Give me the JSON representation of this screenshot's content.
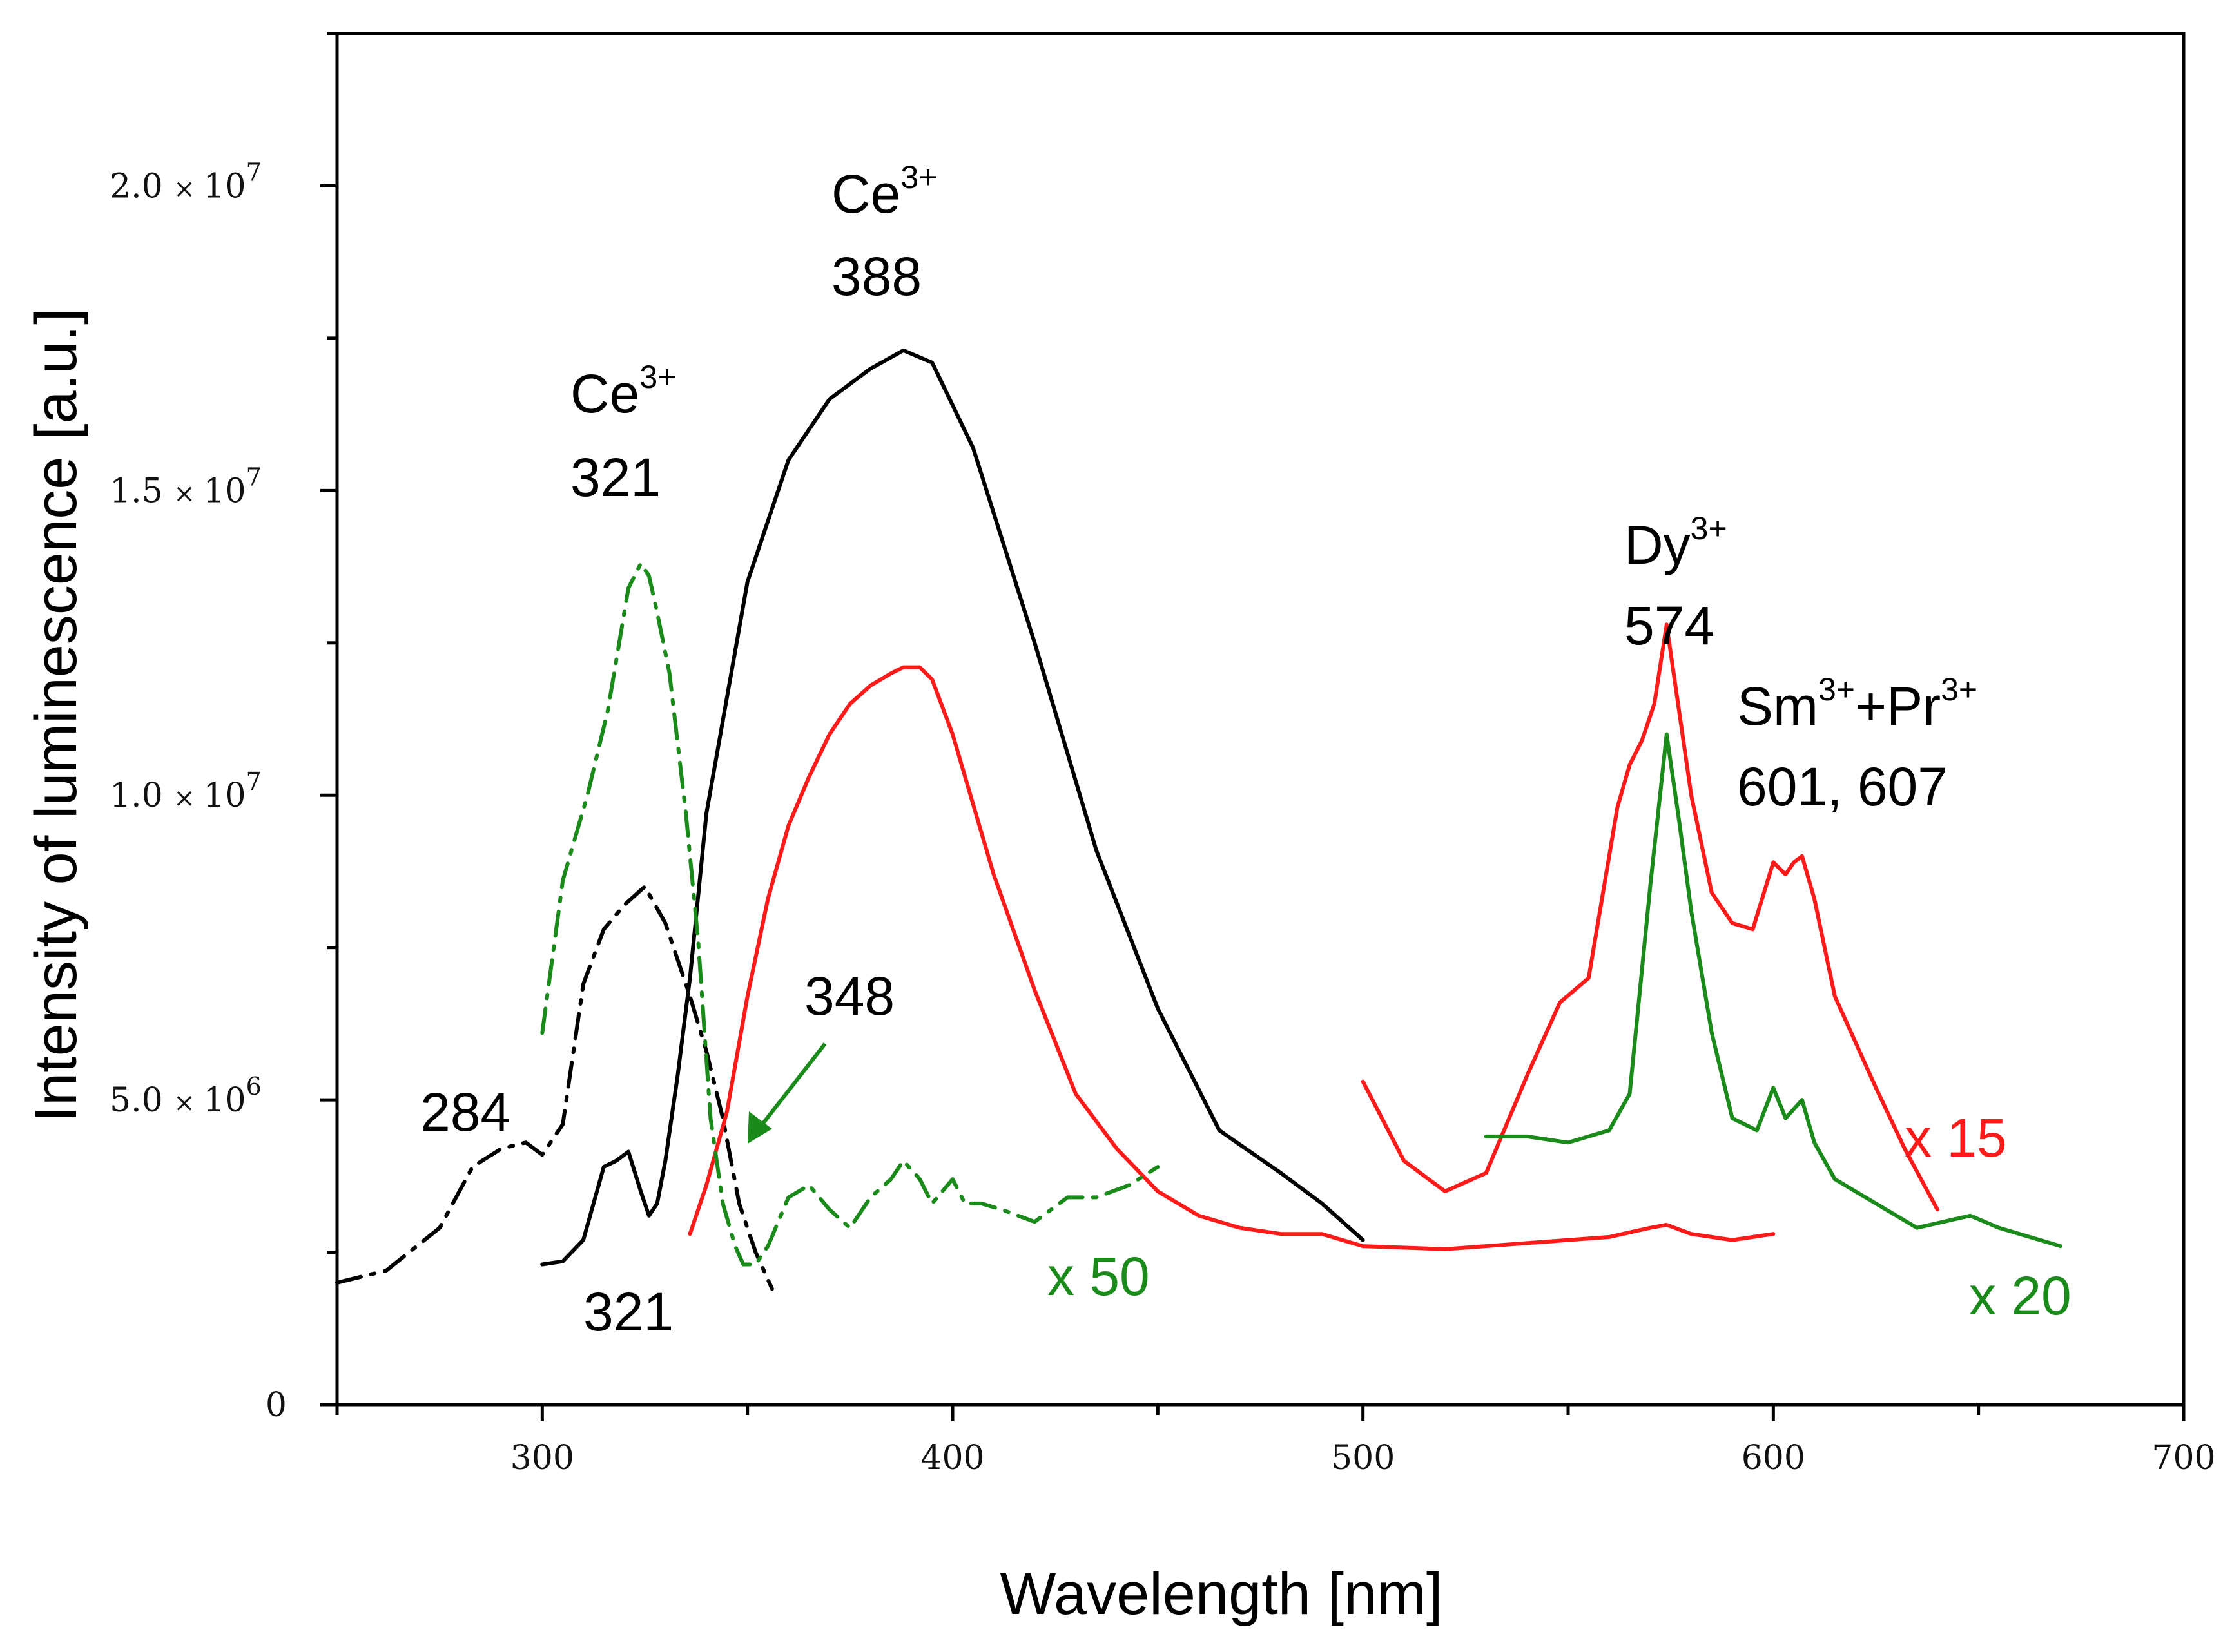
{
  "chart_data": {
    "type": "line",
    "xlabel": "Wavelength [nm]",
    "ylabel": "Intensity of luminescence [a.u.]",
    "xlim": [
      250,
      700
    ],
    "ylim": [
      0,
      22500000
    ],
    "x_ticks": [
      "300",
      "400",
      "500",
      "600",
      "700"
    ],
    "y_ticks": [
      {
        "value": 0,
        "mantissa": "0",
        "times": "",
        "base": "",
        "exp": ""
      },
      {
        "value": 5000000,
        "mantissa": "5.0",
        "times": "×",
        "base": "10",
        "exp": "6"
      },
      {
        "value": 10000000,
        "mantissa": "1.0",
        "times": "×",
        "base": "10",
        "exp": "7"
      },
      {
        "value": 15000000,
        "mantissa": "1.5",
        "times": "×",
        "base": "10",
        "exp": "7"
      },
      {
        "value": 20000000,
        "mantissa": "2.0",
        "times": "×",
        "base": "10",
        "exp": "7"
      }
    ],
    "colors": {
      "black": "#000000",
      "red": "#ff1a1a",
      "green": "#1a8a1a"
    },
    "series": [
      {
        "name": "black excitation (dash-dot)",
        "color": "#000000",
        "style": "dashdot",
        "x": [
          250,
          262,
          275,
          283,
          290,
          296,
          300,
          305,
          310,
          315,
          320,
          325,
          330,
          336,
          340,
          344,
          348,
          352,
          356
        ],
        "y": [
          2000000,
          2200000,
          2900000,
          3900000,
          4200000,
          4300000,
          4100000,
          4600000,
          6900000,
          7800000,
          8200000,
          8500000,
          7900000,
          6700000,
          5800000,
          4700000,
          3300000,
          2500000,
          1900000
        ]
      },
      {
        "name": "black emission (solid)",
        "color": "#000000",
        "style": "solid",
        "x": [
          300,
          305,
          310,
          315,
          318,
          321,
          324,
          326,
          328,
          330,
          333,
          336,
          340,
          345,
          350,
          355,
          360,
          370,
          380,
          388,
          395,
          405,
          420,
          435,
          450,
          465,
          480,
          490,
          500
        ],
        "y": [
          2300000,
          2350000,
          2700000,
          3900000,
          4000000,
          4150000,
          3500000,
          3100000,
          3300000,
          4000000,
          5400000,
          7000000,
          9700000,
          11600000,
          13500000,
          14500000,
          15500000,
          16500000,
          17000000,
          17300000,
          17100000,
          15700000,
          12500000,
          9100000,
          6500000,
          4500000,
          3800000,
          3300000,
          2700000
        ]
      },
      {
        "name": "red emission x15 (left)",
        "color": "#ff1a1a",
        "style": "solid",
        "x": [
          336,
          340,
          345,
          350,
          355,
          360,
          365,
          370,
          375,
          380,
          385,
          388,
          392,
          395,
          400,
          410,
          420,
          430,
          440,
          450,
          460,
          470,
          480,
          490,
          500,
          520,
          540,
          560,
          570,
          574,
          580,
          590,
          600
        ],
        "y": [
          2800000,
          3600000,
          4800000,
          6700000,
          8300000,
          9500000,
          10300000,
          11000000,
          11500000,
          11800000,
          12000000,
          12100000,
          12100000,
          11900000,
          11000000,
          8700000,
          6800000,
          5100000,
          4200000,
          3500000,
          3100000,
          2900000,
          2800000,
          2800000,
          2600000,
          2550000,
          2650000,
          2750000,
          2900000,
          2950000,
          2800000,
          2700000,
          2800000
        ]
      },
      {
        "name": "red emission x15 (right)",
        "color": "#ff1a1a",
        "style": "solid",
        "x": [
          500,
          510,
          520,
          530,
          540,
          548,
          555,
          562,
          565,
          568,
          571,
          574,
          577,
          580,
          585,
          590,
          595,
          600,
          603,
          605,
          607,
          610,
          615,
          625,
          632,
          640
        ],
        "y": [
          5300000,
          4000000,
          3500000,
          3800000,
          5400000,
          6600000,
          7000000,
          9800000,
          10500000,
          10900000,
          11500000,
          12800000,
          11400000,
          10000000,
          8400000,
          7900000,
          7800000,
          8900000,
          8700000,
          8900000,
          9000000,
          8300000,
          6700000,
          5200000,
          4200000,
          3200000
        ]
      },
      {
        "name": "green emission x20",
        "color": "#1a8a1a",
        "style": "solid",
        "x": [
          530,
          540,
          550,
          560,
          565,
          570,
          574,
          577,
          580,
          585,
          590,
          596,
          600,
          603,
          607,
          610,
          615,
          625,
          635,
          648,
          655,
          670
        ],
        "y": [
          4400000,
          4400000,
          4300000,
          4500000,
          5100000,
          8500000,
          11000000,
          9600000,
          8100000,
          6100000,
          4700000,
          4500000,
          5200000,
          4700000,
          5000000,
          4300000,
          3700000,
          3300000,
          2900000,
          3100000,
          2900000,
          2600000
        ]
      },
      {
        "name": "green excitation x50 (dash-dot)",
        "color": "#1a8a1a",
        "style": "dashdot",
        "x": [
          300,
          305,
          311,
          316,
          321,
          324,
          326,
          328,
          331,
          335,
          338,
          341,
          344,
          347,
          349,
          352,
          355,
          360,
          365,
          370,
          375,
          380,
          385,
          388,
          392,
          395,
          400,
          403,
          407,
          412,
          420,
          428,
          435,
          443,
          450
        ],
        "y": [
          6100000,
          8600000,
          10000000,
          11400000,
          13400000,
          13800000,
          13600000,
          13000000,
          12000000,
          9700000,
          7600000,
          4700000,
          3300000,
          2600000,
          2300000,
          2300000,
          2600000,
          3400000,
          3600000,
          3200000,
          2900000,
          3400000,
          3700000,
          4000000,
          3700000,
          3300000,
          3700000,
          3300000,
          3300000,
          3200000,
          3000000,
          3400000,
          3400000,
          3600000,
          3900000
        ]
      }
    ],
    "annotations": [
      {
        "lines": [
          "Ce",
          "388"
        ],
        "sup": "3+"
      },
      {
        "lines": [
          "Ce",
          "321"
        ],
        "sup": "3+"
      },
      {
        "lines": [
          "Dy",
          "574"
        ],
        "sup": "3+"
      },
      {
        "lines": [
          "Sm+Pr",
          "601, 607"
        ],
        "sup": "3+"
      },
      {
        "text": "348"
      },
      {
        "text": "284"
      },
      {
        "text": "321"
      },
      {
        "text": "x 50"
      },
      {
        "text": "x 15"
      },
      {
        "text": "x 20"
      }
    ]
  },
  "labels": {
    "ce388_elem": "Ce",
    "ce388_sup": "3+",
    "ce388_val": "388",
    "ce321_elem": "Ce",
    "ce321_sup": "3+",
    "ce321_val": "321",
    "dy_elem": "Dy",
    "dy_sup": "3+",
    "dy_val": "574",
    "sm_elem": "Sm",
    "sm_sup": "3+",
    "plus_pr": "+Pr",
    "pr_sup": "3+",
    "smpr_val": "601, 607",
    "peak348": "348",
    "peak284": "284",
    "peak321": "321",
    "mult50": "x 50",
    "mult15": "x 15",
    "mult20": "x 20"
  }
}
